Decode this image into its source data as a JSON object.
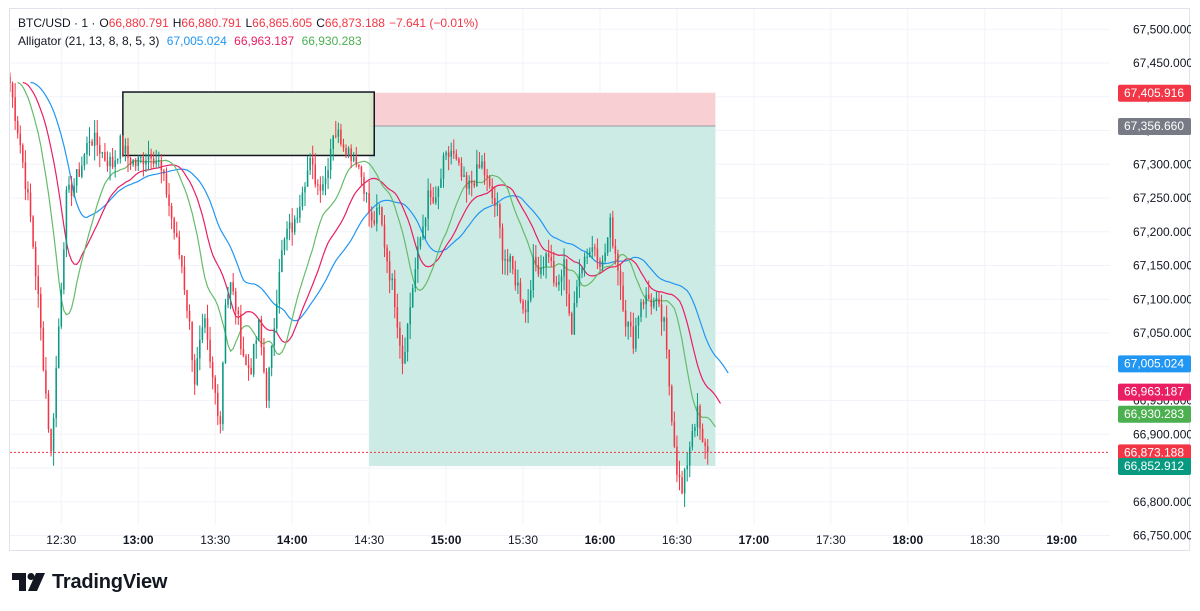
{
  "legend": {
    "symbol": "BTC/USD · 1 ·",
    "o_label": "O",
    "o_value": "66,880.791",
    "h_label": "H",
    "h_value": "66,880.791",
    "l_label": "L",
    "l_value": "66,865.605",
    "c_label": "C",
    "c_value": "66,873.188",
    "change": "−7.641 (−0.01%)",
    "indicator": "Alligator (21, 13, 8, 8, 5, 3)",
    "jaw": "67,005.024",
    "teeth": "66,963.187",
    "lips": "66,930.283"
  },
  "colors": {
    "up": "#089981",
    "down": "#f23645",
    "jaw": "#2196f3",
    "teeth": "#e91e63",
    "lips": "#66bb6a",
    "stop_zone": "#f8d0d3",
    "target_zone": "#cdebe5",
    "range_box": "#d5ebcc"
  },
  "price_axis": {
    "ticks": [
      "67,500.000",
      "67,450.000",
      "67,400.000",
      "67,350.000",
      "67,300.000",
      "67,250.000",
      "67,200.000",
      "67,150.000",
      "67,100.000",
      "67,050.000",
      "67,000.000",
      "66,950.000",
      "66,900.000",
      "66,850.000",
      "66,800.000",
      "66,750.000"
    ],
    "badges": [
      {
        "text": "67,405.916",
        "color": "#f23645"
      },
      {
        "text": "67,356.660",
        "color": "#787b86"
      },
      {
        "text": "67,005.024",
        "color": "#2196f3"
      },
      {
        "text": "66,963.187",
        "color": "#e91e63"
      },
      {
        "text": "66,930.283",
        "color": "#4caf50"
      },
      {
        "text": "66,873.188",
        "color": "#f23645"
      },
      {
        "text": "66,852.912",
        "color": "#089981"
      }
    ]
  },
  "time_axis": {
    "ticks": [
      {
        "label": "12:30",
        "bold": false
      },
      {
        "label": "13:00",
        "bold": true
      },
      {
        "label": "13:30",
        "bold": false
      },
      {
        "label": "14:00",
        "bold": true
      },
      {
        "label": "14:30",
        "bold": false
      },
      {
        "label": "15:00",
        "bold": true
      },
      {
        "label": "15:30",
        "bold": false
      },
      {
        "label": "16:00",
        "bold": true
      },
      {
        "label": "16:30",
        "bold": false
      },
      {
        "label": "17:00",
        "bold": true
      },
      {
        "label": "17:30",
        "bold": false
      },
      {
        "label": "18:00",
        "bold": true
      },
      {
        "label": "18:30",
        "bold": false
      },
      {
        "label": "19:00",
        "bold": true
      }
    ]
  },
  "chart_data": {
    "type": "candlestick",
    "title": "BTC/USD · 1",
    "x_range": [
      "12:10",
      "19:20"
    ],
    "y_range": [
      66730,
      67530
    ],
    "current_price": 66873.188,
    "range_box": {
      "t_start": "12:54",
      "t_end": "14:32",
      "high": 67407,
      "low": 67313
    },
    "position": {
      "t_start": "14:30",
      "t_end": "16:45",
      "entry": 67356.66,
      "stop": 67405.916,
      "target": 66852.912
    },
    "anchors": [
      [
        "12:10",
        67420
      ],
      [
        "12:14",
        67330
      ],
      [
        "12:18",
        67220
      ],
      [
        "12:21",
        67100
      ],
      [
        "12:24",
        66960
      ],
      [
        "12:26",
        66870
      ],
      [
        "12:29",
        67060
      ],
      [
        "12:32",
        67250
      ],
      [
        "12:35",
        67270
      ],
      [
        "12:38",
        67300
      ],
      [
        "12:41",
        67340
      ],
      [
        "12:44",
        67330
      ],
      [
        "12:47",
        67310
      ],
      [
        "12:50",
        67300
      ],
      [
        "12:53",
        67330
      ],
      [
        "12:56",
        67310
      ],
      [
        "12:59",
        67300
      ],
      [
        "13:02",
        67310
      ],
      [
        "13:05",
        67320
      ],
      [
        "13:08",
        67300
      ],
      [
        "13:11",
        67260
      ],
      [
        "13:14",
        67200
      ],
      [
        "13:17",
        67150
      ],
      [
        "13:20",
        67060
      ],
      [
        "13:22",
        66980
      ],
      [
        "13:24",
        67030
      ],
      [
        "13:26",
        67060
      ],
      [
        "13:28",
        67000
      ],
      [
        "13:30",
        66960
      ],
      [
        "13:32",
        66920
      ],
      [
        "13:34",
        67100
      ],
      [
        "13:36",
        67120
      ],
      [
        "13:38",
        67090
      ],
      [
        "13:40",
        67040
      ],
      [
        "13:42",
        67000
      ],
      [
        "13:44",
        67000
      ],
      [
        "13:47",
        67060
      ],
      [
        "13:50",
        66960
      ],
      [
        "13:52",
        67020
      ],
      [
        "13:55",
        67150
      ],
      [
        "13:58",
        67200
      ],
      [
        "14:01",
        67210
      ],
      [
        "14:04",
        67270
      ],
      [
        "14:07",
        67300
      ],
      [
        "14:10",
        67270
      ],
      [
        "14:13",
        67280
      ],
      [
        "14:16",
        67350
      ],
      [
        "14:19",
        67340
      ],
      [
        "14:22",
        67320
      ],
      [
        "14:25",
        67310
      ],
      [
        "14:28",
        67270
      ],
      [
        "14:31",
        67210
      ],
      [
        "14:34",
        67230
      ],
      [
        "14:37",
        67160
      ],
      [
        "14:40",
        67100
      ],
      [
        "14:43",
        67010
      ],
      [
        "14:45",
        67060
      ],
      [
        "14:47",
        67120
      ],
      [
        "14:50",
        67190
      ],
      [
        "14:53",
        67250
      ],
      [
        "14:56",
        67240
      ],
      [
        "14:59",
        67300
      ],
      [
        "15:02",
        67320
      ],
      [
        "15:05",
        67290
      ],
      [
        "15:08",
        67260
      ],
      [
        "15:11",
        67280
      ],
      [
        "15:14",
        67300
      ],
      [
        "15:17",
        67260
      ],
      [
        "15:20",
        67230
      ],
      [
        "15:22",
        67170
      ],
      [
        "15:25",
        67150
      ],
      [
        "15:28",
        67120
      ],
      [
        "15:31",
        67080
      ],
      [
        "15:34",
        67150
      ],
      [
        "15:37",
        67150
      ],
      [
        "15:40",
        67170
      ],
      [
        "15:43",
        67110
      ],
      [
        "15:46",
        67150
      ],
      [
        "15:49",
        67050
      ],
      [
        "15:52",
        67150
      ],
      [
        "15:55",
        67170
      ],
      [
        "15:58",
        67180
      ],
      [
        "16:01",
        67150
      ],
      [
        "16:04",
        67210
      ],
      [
        "16:07",
        67150
      ],
      [
        "16:10",
        67070
      ],
      [
        "16:13",
        67040
      ],
      [
        "16:16",
        67100
      ],
      [
        "16:19",
        67100
      ],
      [
        "16:22",
        67090
      ],
      [
        "16:25",
        67060
      ],
      [
        "16:28",
        66930
      ],
      [
        "16:30",
        66850
      ],
      [
        "16:32",
        66810
      ],
      [
        "16:34",
        66860
      ],
      [
        "16:36",
        66910
      ],
      [
        "16:38",
        66930
      ],
      [
        "16:40",
        66880
      ],
      [
        "16:42",
        66873
      ]
    ],
    "series": [
      {
        "name": "Jaw",
        "last": 67005.024
      },
      {
        "name": "Teeth",
        "last": 66963.187
      },
      {
        "name": "Lips",
        "last": 66930.283
      }
    ]
  },
  "branding": {
    "text": "TradingView"
  }
}
